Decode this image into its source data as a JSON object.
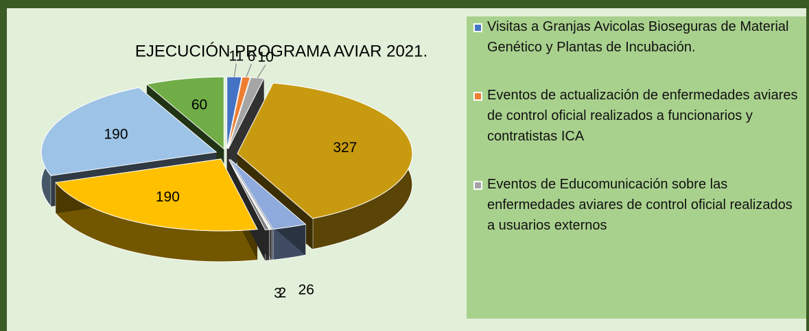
{
  "chart_data": {
    "type": "pie",
    "title": "EJECUCIÓN PROGRAMA AVIAR 2021.",
    "categories": [
      "Visitas  a  Granjas Avicolas Bioseguras de Material Genético y Plantas de Incubación.",
      "Eventos de actualización de enfermedades aviares de control oficial realizados a funcionarios y contratistas ICA",
      "Eventos de Educomunicación sobre las enfermedades aviares de control oficial realizados a usuarios externos",
      null,
      null,
      null,
      null,
      null,
      null,
      null
    ],
    "values": [
      11,
      6,
      10,
      327,
      26,
      2,
      3,
      190,
      190,
      60
    ],
    "colors": [
      "#4472c4",
      "#ed7d31",
      "#a5a5a5",
      "#c89a10",
      "#8faadc",
      "#e8e8e8",
      "#7f7f7f",
      "#ffc000",
      "#9dc3e6",
      "#70ad47"
    ]
  }
}
